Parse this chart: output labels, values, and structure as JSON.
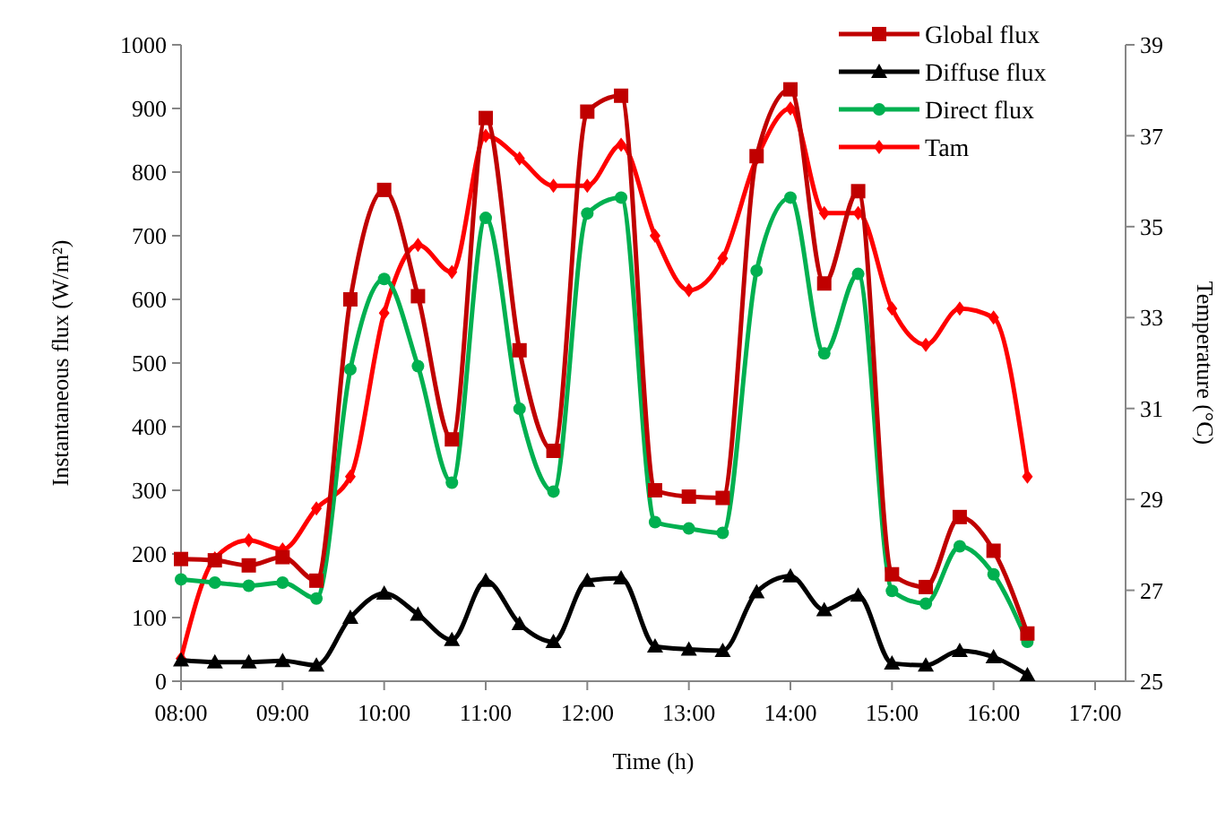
{
  "chart_data": {
    "type": "line",
    "xlabel": "Time (h)",
    "ylabel": "Instantaneous flux (W/m²)",
    "y2label": "Temperature (°C)",
    "x": [
      8,
      8.333,
      8.667,
      9,
      9.333,
      9.667,
      10,
      10.333,
      10.667,
      11,
      11.333,
      11.667,
      12,
      12.333,
      12.667,
      13,
      13.333,
      13.667,
      14,
      14.333,
      14.667,
      15,
      15.333,
      15.667,
      16,
      16.333
    ],
    "xlim": [
      8,
      17.3
    ],
    "xticks": [
      {
        "value": 8,
        "label": "08:00"
      },
      {
        "value": 9,
        "label": "09:00"
      },
      {
        "value": 10,
        "label": "10:00"
      },
      {
        "value": 11,
        "label": "11:00"
      },
      {
        "value": 12,
        "label": "12:00"
      },
      {
        "value": 13,
        "label": "13:00"
      },
      {
        "value": 14,
        "label": "14:00"
      },
      {
        "value": 15,
        "label": "15:00"
      },
      {
        "value": 16,
        "label": "16:00"
      },
      {
        "value": 17,
        "label": "17:00"
      }
    ],
    "ylim": [
      0,
      1000
    ],
    "yticks": [
      0,
      100,
      200,
      300,
      400,
      500,
      600,
      700,
      800,
      900,
      1000
    ],
    "y2lim": [
      25,
      39
    ],
    "y2ticks": [
      25,
      27,
      29,
      31,
      33,
      35,
      37,
      39
    ],
    "legend": "top right",
    "grid": false,
    "line_style": "solid",
    "series": [
      {
        "name": "Global flux",
        "color": "#c00000",
        "marker": "square",
        "values": [
          192,
          190,
          182,
          195,
          158,
          600,
          772,
          605,
          380,
          885,
          520,
          362,
          895,
          920,
          300,
          290,
          288,
          825,
          930,
          625,
          770,
          168,
          148,
          258,
          205,
          75
        ]
      },
      {
        "name": "Diffuse flux",
        "color": "#000000",
        "marker": "triangle",
        "values": [
          33,
          30,
          30,
          32,
          25,
          100,
          138,
          105,
          65,
          158,
          90,
          62,
          158,
          162,
          55,
          50,
          48,
          140,
          165,
          112,
          135,
          28,
          25,
          48,
          38,
          10
        ]
      },
      {
        "name": "Direct flux",
        "color": "#00b050",
        "marker": "circle",
        "values": [
          160,
          155,
          150,
          155,
          130,
          490,
          632,
          495,
          312,
          728,
          428,
          298,
          735,
          760,
          250,
          240,
          233,
          645,
          760,
          515,
          640,
          142,
          122,
          212,
          168,
          62
        ]
      },
      {
        "name": "Tam",
        "color": "#ff0000",
        "marker": "diamond",
        "axis": "y2",
        "values": [
          25.5,
          27.7,
          28.1,
          27.9,
          28.8,
          29.5,
          33.1,
          34.6,
          34.0,
          37.0,
          36.5,
          35.9,
          35.9,
          36.8,
          34.8,
          33.6,
          34.3,
          36.5,
          37.6,
          35.3,
          35.3,
          33.2,
          32.4,
          33.2,
          33.0,
          29.5
        ]
      }
    ]
  }
}
